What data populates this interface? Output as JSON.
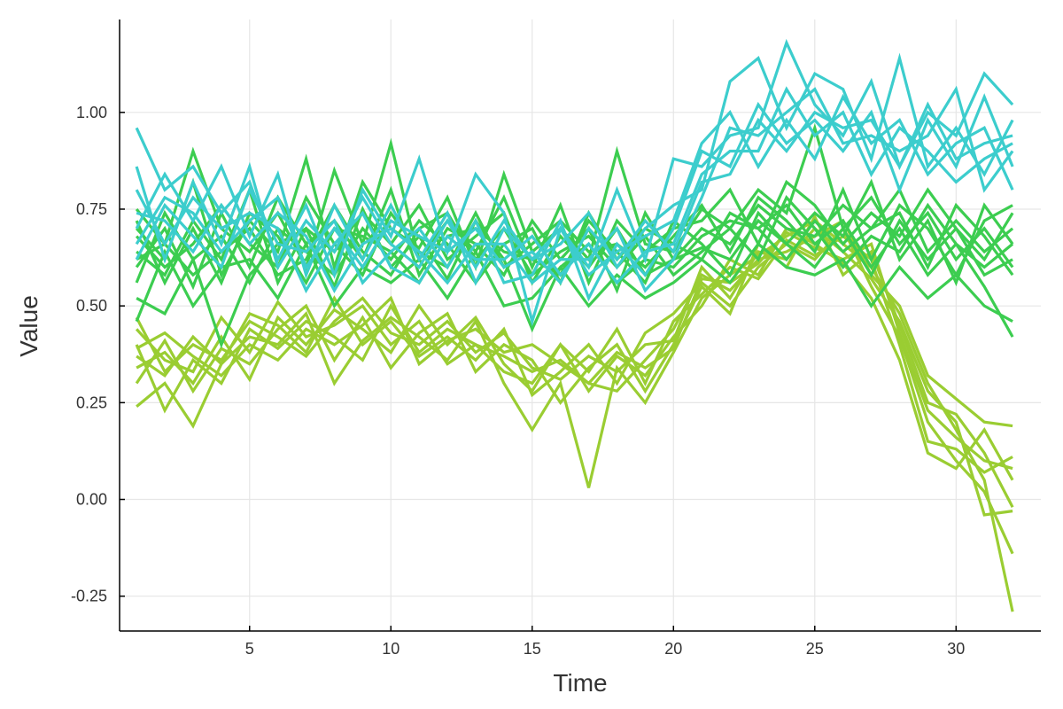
{
  "chart_data": {
    "type": "line",
    "title": "",
    "xlabel": "Time",
    "ylabel": "Value",
    "xlim": [
      0.4,
      33.0
    ],
    "ylim": [
      -0.34,
      1.24
    ],
    "xticks": [
      5,
      10,
      15,
      20,
      25,
      30
    ],
    "yticks": [
      -0.25,
      0.0,
      0.25,
      0.5,
      0.75,
      1.0
    ],
    "ytick_labels": [
      "-0.25",
      "0.00",
      "0.25",
      "0.50",
      "0.75",
      "1.00"
    ],
    "grid": true,
    "legend": "none",
    "x": [
      1,
      2,
      3,
      4,
      5,
      6,
      7,
      8,
      9,
      10,
      11,
      12,
      13,
      14,
      15,
      16,
      17,
      18,
      19,
      20,
      21,
      22,
      23,
      24,
      25,
      26,
      27,
      28,
      29,
      30,
      31,
      32
    ],
    "group_colors": {
      "yellow-green": "#9ACD32",
      "green": "#3CCD50",
      "cyan": "#3CCDCD"
    },
    "series": [
      {
        "group": "yellow-green",
        "values": [
          0.24,
          0.3,
          0.19,
          0.35,
          0.42,
          0.4,
          0.48,
          0.3,
          0.41,
          0.47,
          0.42,
          0.36,
          0.46,
          0.3,
          0.18,
          0.3,
          0.03,
          0.34,
          0.25,
          0.38,
          0.52,
          0.58,
          0.63,
          0.68,
          0.72,
          0.66,
          0.6,
          0.48,
          0.3,
          0.18,
          0.05,
          -0.29
        ]
      },
      {
        "group": "yellow-green",
        "values": [
          0.37,
          0.32,
          0.42,
          0.35,
          0.48,
          0.45,
          0.38,
          0.52,
          0.4,
          0.46,
          0.37,
          0.42,
          0.36,
          0.44,
          0.27,
          0.33,
          0.4,
          0.3,
          0.43,
          0.48,
          0.56,
          0.5,
          0.6,
          0.66,
          0.62,
          0.7,
          0.55,
          0.42,
          0.2,
          0.1,
          0.02,
          -0.14
        ]
      },
      {
        "group": "yellow-green",
        "values": [
          0.44,
          0.36,
          0.33,
          0.47,
          0.38,
          0.51,
          0.42,
          0.45,
          0.5,
          0.4,
          0.46,
          0.35,
          0.4,
          0.33,
          0.3,
          0.4,
          0.28,
          0.37,
          0.32,
          0.42,
          0.5,
          0.62,
          0.58,
          0.7,
          0.66,
          0.61,
          0.52,
          0.36,
          0.12,
          0.08,
          0.18,
          0.05
        ]
      },
      {
        "group": "yellow-green",
        "values": [
          0.3,
          0.41,
          0.28,
          0.39,
          0.35,
          0.44,
          0.5,
          0.36,
          0.47,
          0.34,
          0.43,
          0.48,
          0.33,
          0.4,
          0.36,
          0.25,
          0.34,
          0.4,
          0.28,
          0.4,
          0.55,
          0.48,
          0.66,
          0.6,
          0.73,
          0.58,
          0.64,
          0.45,
          0.25,
          0.22,
          0.12,
          -0.02
        ]
      },
      {
        "group": "yellow-green",
        "values": [
          0.4,
          0.23,
          0.36,
          0.3,
          0.44,
          0.39,
          0.46,
          0.42,
          0.36,
          0.5,
          0.38,
          0.44,
          0.4,
          0.37,
          0.33,
          0.36,
          0.3,
          0.28,
          0.36,
          0.44,
          0.58,
          0.54,
          0.62,
          0.64,
          0.68,
          0.72,
          0.58,
          0.5,
          0.32,
          0.26,
          0.2,
          0.19
        ]
      },
      {
        "group": "yellow-green",
        "values": [
          0.34,
          0.38,
          0.3,
          0.42,
          0.31,
          0.47,
          0.4,
          0.49,
          0.44,
          0.38,
          0.5,
          0.4,
          0.47,
          0.35,
          0.28,
          0.4,
          0.33,
          0.44,
          0.3,
          0.46,
          0.53,
          0.6,
          0.57,
          0.67,
          0.63,
          0.68,
          0.62,
          0.4,
          0.15,
          0.13,
          0.07,
          0.11
        ]
      },
      {
        "group": "yellow-green",
        "values": [
          0.47,
          0.33,
          0.4,
          0.36,
          0.46,
          0.42,
          0.37,
          0.46,
          0.52,
          0.43,
          0.4,
          0.46,
          0.38,
          0.43,
          0.34,
          0.31,
          0.37,
          0.33,
          0.4,
          0.41,
          0.6,
          0.52,
          0.64,
          0.62,
          0.7,
          0.64,
          0.57,
          0.46,
          0.28,
          0.2,
          -0.04,
          -0.03
        ]
      },
      {
        "group": "yellow-green",
        "values": [
          0.39,
          0.43,
          0.37,
          0.32,
          0.4,
          0.36,
          0.44,
          0.4,
          0.45,
          0.52,
          0.35,
          0.41,
          0.44,
          0.38,
          0.4,
          0.35,
          0.3,
          0.38,
          0.34,
          0.39,
          0.57,
          0.56,
          0.61,
          0.69,
          0.65,
          0.62,
          0.66,
          0.43,
          0.23,
          0.16,
          0.1,
          0.08
        ]
      },
      {
        "group": "green",
        "values": [
          0.52,
          0.48,
          0.62,
          0.4,
          0.58,
          0.66,
          0.7,
          0.55,
          0.75,
          0.6,
          0.68,
          0.57,
          0.72,
          0.62,
          0.44,
          0.6,
          0.66,
          0.56,
          0.62,
          0.6,
          0.68,
          0.72,
          0.7,
          0.76,
          0.66,
          0.72,
          0.6,
          0.7,
          0.58,
          0.66,
          0.55,
          0.42
        ]
      },
      {
        "group": "green",
        "values": [
          0.7,
          0.62,
          0.82,
          0.58,
          0.72,
          0.64,
          0.88,
          0.6,
          0.82,
          0.7,
          0.65,
          0.78,
          0.6,
          0.84,
          0.64,
          0.7,
          0.62,
          0.9,
          0.66,
          0.64,
          0.75,
          0.7,
          0.8,
          0.74,
          0.96,
          0.7,
          0.78,
          0.66,
          0.74,
          0.62,
          0.7,
          0.6
        ]
      },
      {
        "group": "green",
        "values": [
          0.6,
          0.7,
          0.55,
          0.74,
          0.6,
          0.78,
          0.66,
          0.72,
          0.62,
          0.8,
          0.58,
          0.7,
          0.66,
          0.58,
          0.72,
          0.62,
          0.7,
          0.54,
          0.74,
          0.62,
          0.65,
          0.62,
          0.72,
          0.66,
          0.74,
          0.68,
          0.82,
          0.62,
          0.72,
          0.56,
          0.76,
          0.66
        ]
      },
      {
        "group": "green",
        "values": [
          0.64,
          0.58,
          0.72,
          0.62,
          0.8,
          0.56,
          0.7,
          0.64,
          0.74,
          0.66,
          0.76,
          0.62,
          0.68,
          0.74,
          0.56,
          0.68,
          0.6,
          0.7,
          0.58,
          0.62,
          0.7,
          0.66,
          0.76,
          0.7,
          0.68,
          0.76,
          0.7,
          0.8,
          0.64,
          0.72,
          0.64,
          0.7
        ]
      },
      {
        "group": "green",
        "values": [
          0.75,
          0.66,
          0.9,
          0.7,
          0.64,
          0.74,
          0.6,
          0.85,
          0.66,
          0.92,
          0.62,
          0.72,
          0.64,
          0.78,
          0.6,
          0.76,
          0.56,
          0.72,
          0.64,
          0.7,
          0.72,
          0.8,
          0.66,
          0.82,
          0.76,
          0.66,
          0.74,
          0.68,
          0.8,
          0.7,
          0.62,
          0.74
        ]
      },
      {
        "group": "green",
        "values": [
          0.56,
          0.74,
          0.62,
          0.68,
          0.56,
          0.7,
          0.64,
          0.58,
          0.7,
          0.62,
          0.72,
          0.66,
          0.56,
          0.66,
          0.7,
          0.56,
          0.74,
          0.62,
          0.7,
          0.66,
          0.62,
          0.74,
          0.7,
          0.62,
          0.72,
          0.64,
          0.7,
          0.74,
          0.6,
          0.76,
          0.68,
          0.58
        ]
      },
      {
        "group": "green",
        "values": [
          0.68,
          0.6,
          0.66,
          0.76,
          0.66,
          0.6,
          0.78,
          0.66,
          0.58,
          0.74,
          0.64,
          0.6,
          0.74,
          0.6,
          0.66,
          0.72,
          0.64,
          0.66,
          0.6,
          0.68,
          0.76,
          0.64,
          0.78,
          0.72,
          0.64,
          0.8,
          0.62,
          0.76,
          0.7,
          0.58,
          0.72,
          0.76
        ]
      },
      {
        "group": "green",
        "values": [
          0.62,
          0.66,
          0.58,
          0.64,
          0.7,
          0.58,
          0.62,
          0.76,
          0.64,
          0.58,
          0.7,
          0.74,
          0.62,
          0.7,
          0.58,
          0.64,
          0.68,
          0.6,
          0.68,
          0.58,
          0.64,
          0.7,
          0.62,
          0.78,
          0.7,
          0.6,
          0.68,
          0.64,
          0.76,
          0.66,
          0.6,
          0.66
        ]
      },
      {
        "group": "green",
        "values": [
          0.72,
          0.56,
          0.7,
          0.56,
          0.74,
          0.68,
          0.56,
          0.7,
          0.68,
          0.64,
          0.56,
          0.68,
          0.7,
          0.64,
          0.62,
          0.58,
          0.72,
          0.64,
          0.56,
          0.72,
          0.66,
          0.58,
          0.74,
          0.66,
          0.6,
          0.7,
          0.58,
          0.72,
          0.62,
          0.7,
          0.58,
          0.62
        ]
      },
      {
        "group": "green",
        "values": [
          0.46,
          0.64,
          0.5,
          0.6,
          0.62,
          0.52,
          0.66,
          0.5,
          0.6,
          0.56,
          0.62,
          0.52,
          0.64,
          0.5,
          0.52,
          0.6,
          0.5,
          0.58,
          0.52,
          0.56,
          0.62,
          0.56,
          0.66,
          0.6,
          0.58,
          0.62,
          0.5,
          0.6,
          0.52,
          0.58,
          0.5,
          0.46
        ]
      },
      {
        "group": "cyan",
        "values": [
          0.96,
          0.8,
          0.86,
          0.74,
          0.82,
          0.62,
          0.76,
          0.58,
          0.8,
          0.68,
          0.88,
          0.64,
          0.84,
          0.74,
          0.46,
          0.7,
          0.6,
          0.8,
          0.62,
          0.88,
          0.86,
          0.94,
          0.96,
          1.18,
          1.02,
          0.94,
          1.08,
          0.86,
          1.0,
          0.94,
          1.1,
          1.02
        ]
      },
      {
        "group": "cyan",
        "values": [
          0.7,
          0.84,
          0.72,
          0.86,
          0.68,
          0.84,
          0.58,
          0.76,
          0.62,
          0.76,
          0.62,
          0.74,
          0.56,
          0.7,
          0.62,
          0.66,
          0.74,
          0.6,
          0.7,
          0.76,
          0.8,
          1.08,
          1.14,
          0.96,
          1.1,
          1.06,
          0.88,
          1.14,
          0.86,
          0.96,
          0.84,
          0.98
        ]
      },
      {
        "group": "cyan",
        "values": [
          0.62,
          0.76,
          0.68,
          0.6,
          0.8,
          0.66,
          0.64,
          0.72,
          0.56,
          0.64,
          0.7,
          0.6,
          0.72,
          0.56,
          0.58,
          0.72,
          0.52,
          0.66,
          0.58,
          0.7,
          0.9,
          0.86,
          1.02,
          0.92,
          0.98,
          0.9,
          1.0,
          0.8,
          0.98,
          0.86,
          1.04,
          0.86
        ]
      },
      {
        "group": "cyan",
        "values": [
          0.8,
          0.66,
          0.78,
          0.7,
          0.74,
          0.7,
          0.54,
          0.66,
          0.74,
          0.6,
          0.56,
          0.68,
          0.62,
          0.62,
          0.68,
          0.58,
          0.66,
          0.56,
          0.64,
          0.66,
          0.84,
          0.9,
          0.9,
          1.06,
          0.94,
          1.0,
          0.84,
          0.96,
          0.9,
          0.82,
          0.88,
          0.92
        ]
      },
      {
        "group": "cyan",
        "values": [
          0.74,
          0.72,
          0.64,
          0.76,
          0.66,
          0.74,
          0.68,
          0.54,
          0.66,
          0.7,
          0.64,
          0.56,
          0.66,
          0.66,
          0.56,
          0.62,
          0.62,
          0.7,
          0.54,
          0.62,
          0.78,
          0.96,
          0.94,
          1.0,
          1.06,
          0.92,
          0.94,
          0.9,
          0.94,
          1.06,
          0.8,
          0.9
        ]
      },
      {
        "group": "cyan",
        "values": [
          0.86,
          0.62,
          0.82,
          0.66,
          0.86,
          0.6,
          0.72,
          0.64,
          0.78,
          0.66,
          0.6,
          0.72,
          0.6,
          0.72,
          0.62,
          0.7,
          0.58,
          0.64,
          0.68,
          0.72,
          0.92,
          1.0,
          0.86,
          0.98,
          0.88,
          1.04,
          0.92,
          0.98,
          0.84,
          0.92,
          0.96,
          0.8
        ]
      },
      {
        "group": "cyan",
        "values": [
          0.66,
          0.78,
          0.74,
          0.64,
          0.72,
          0.78,
          0.6,
          0.7,
          0.6,
          0.72,
          0.68,
          0.64,
          0.7,
          0.6,
          0.64,
          0.56,
          0.7,
          0.62,
          0.72,
          0.64,
          0.82,
          0.84,
          0.98,
          0.9,
          1.0,
          0.96,
          0.98,
          0.86,
          1.02,
          0.88,
          0.92,
          0.94
        ]
      }
    ]
  }
}
